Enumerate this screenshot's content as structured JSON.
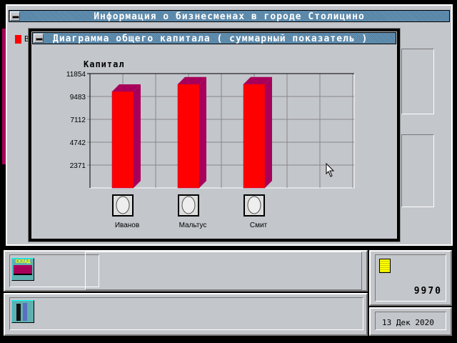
{
  "main_window": {
    "title": "Информация о бизнесменах в городе Столицино",
    "partial_label": "В"
  },
  "chart_window": {
    "title": "Диаграмма общего капитала ( суммарный показатель )"
  },
  "chart_data": {
    "type": "bar",
    "title": "Капитал",
    "categories": [
      "Иванов",
      "Мальтус",
      "Смит"
    ],
    "values": [
      10000,
      10760,
      10760
    ],
    "yticks": [
      2371,
      4742,
      7112,
      9483,
      11854
    ],
    "ylim": [
      0,
      11854
    ],
    "grid": true,
    "colors": {
      "front": "#ff0000",
      "side": "#a8005a"
    }
  },
  "status": {
    "money": "9970",
    "date": "13 Дек 2020",
    "warehouse_icon_label": "СКЛАД"
  },
  "icons": {
    "warehouse": "warehouse-icon",
    "businessmen": "businessmen-icon",
    "coins": "coins-icon",
    "cursor": "mouse-cursor-icon"
  }
}
